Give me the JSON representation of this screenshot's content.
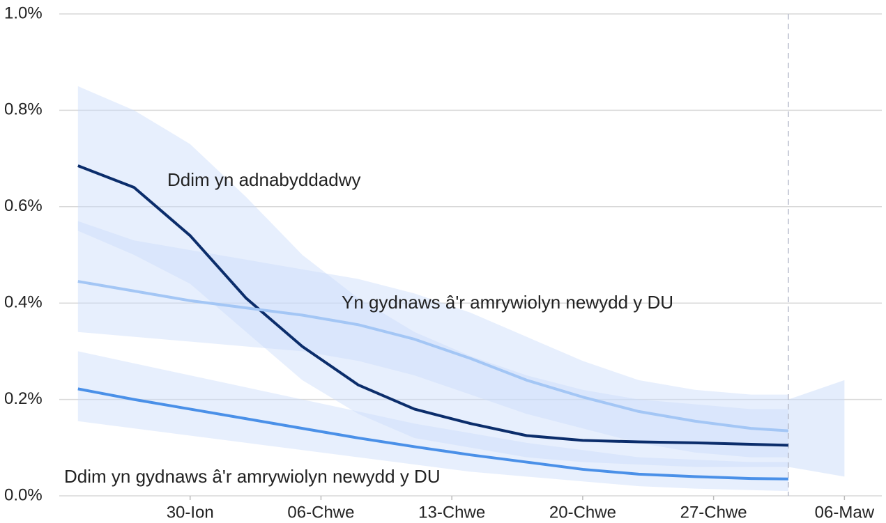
{
  "chart_data": {
    "type": "line",
    "x": [
      24,
      27,
      30,
      33,
      36,
      39,
      42,
      45,
      48,
      51,
      54,
      57,
      60,
      62
    ],
    "xlim": [
      23,
      67
    ],
    "xticks": [
      {
        "value": 30,
        "label": "30-Ion"
      },
      {
        "value": 37,
        "label": "06-Chwe"
      },
      {
        "value": 44,
        "label": "13-Chwe"
      },
      {
        "value": 51,
        "label": "20-Chwe"
      },
      {
        "value": 58,
        "label": "27-Chwe"
      },
      {
        "value": 65,
        "label": "06-Maw"
      }
    ],
    "ylim": [
      0,
      1.0
    ],
    "yticks": [
      {
        "value": 0,
        "label": "0.0%"
      },
      {
        "value": 0.2,
        "label": "0.2%"
      },
      {
        "value": 0.4,
        "label": "0.4%"
      },
      {
        "value": 0.6,
        "label": "0.6%"
      },
      {
        "value": 0.8,
        "label": "0.8%"
      },
      {
        "value": 1.0,
        "label": "1.0%"
      }
    ],
    "grid": true,
    "vline": 62,
    "band_color": "#c9dcfa",
    "series": [
      {
        "name": "Ddim yn adnabyddadwy",
        "color": "#0b2d6b",
        "values": [
          0.685,
          0.64,
          0.54,
          0.41,
          0.31,
          0.23,
          0.18,
          0.15,
          0.125,
          0.115,
          0.112,
          0.11,
          0.107,
          0.105
        ],
        "upper": [
          0.85,
          0.8,
          0.73,
          0.62,
          0.5,
          0.41,
          0.34,
          0.29,
          0.25,
          0.22,
          0.2,
          0.19,
          0.18,
          0.18
        ],
        "lower": [
          0.55,
          0.5,
          0.44,
          0.34,
          0.24,
          0.17,
          0.12,
          0.1,
          0.08,
          0.07,
          0.065,
          0.06,
          0.06,
          0.06
        ]
      },
      {
        "name": "Yn gydnaws â'r amrywiolyn newydd y DU",
        "color": "#a3c6f5",
        "values": [
          0.445,
          0.425,
          0.405,
          0.39,
          0.375,
          0.355,
          0.325,
          0.285,
          0.24,
          0.205,
          0.175,
          0.155,
          0.14,
          0.135
        ],
        "upper": [
          0.57,
          0.53,
          0.51,
          0.49,
          0.47,
          0.45,
          0.42,
          0.38,
          0.33,
          0.28,
          0.24,
          0.22,
          0.21,
          0.21
        ],
        "lower": [
          0.34,
          0.33,
          0.32,
          0.31,
          0.3,
          0.28,
          0.25,
          0.21,
          0.17,
          0.14,
          0.11,
          0.09,
          0.08,
          0.08
        ]
      },
      {
        "name": "Ddim yn gydnaws â'r amrywiolyn newydd y DU",
        "color": "#4a90e8",
        "values": [
          0.222,
          0.2,
          0.18,
          0.16,
          0.14,
          0.12,
          0.102,
          0.085,
          0.07,
          0.055,
          0.045,
          0.04,
          0.036,
          0.035
        ],
        "upper": [
          0.3,
          0.275,
          0.25,
          0.225,
          0.2,
          0.175,
          0.15,
          0.13,
          0.11,
          0.095,
          0.08,
          0.075,
          0.07,
          0.07
        ],
        "lower": [
          0.155,
          0.14,
          0.125,
          0.11,
          0.095,
          0.08,
          0.065,
          0.05,
          0.04,
          0.03,
          0.02,
          0.015,
          0.012,
          0.01
        ]
      }
    ],
    "projection": {
      "x": [
        62,
        65
      ],
      "lower": [
        0.06,
        0.04
      ],
      "upper": [
        0.2,
        0.24
      ]
    }
  }
}
